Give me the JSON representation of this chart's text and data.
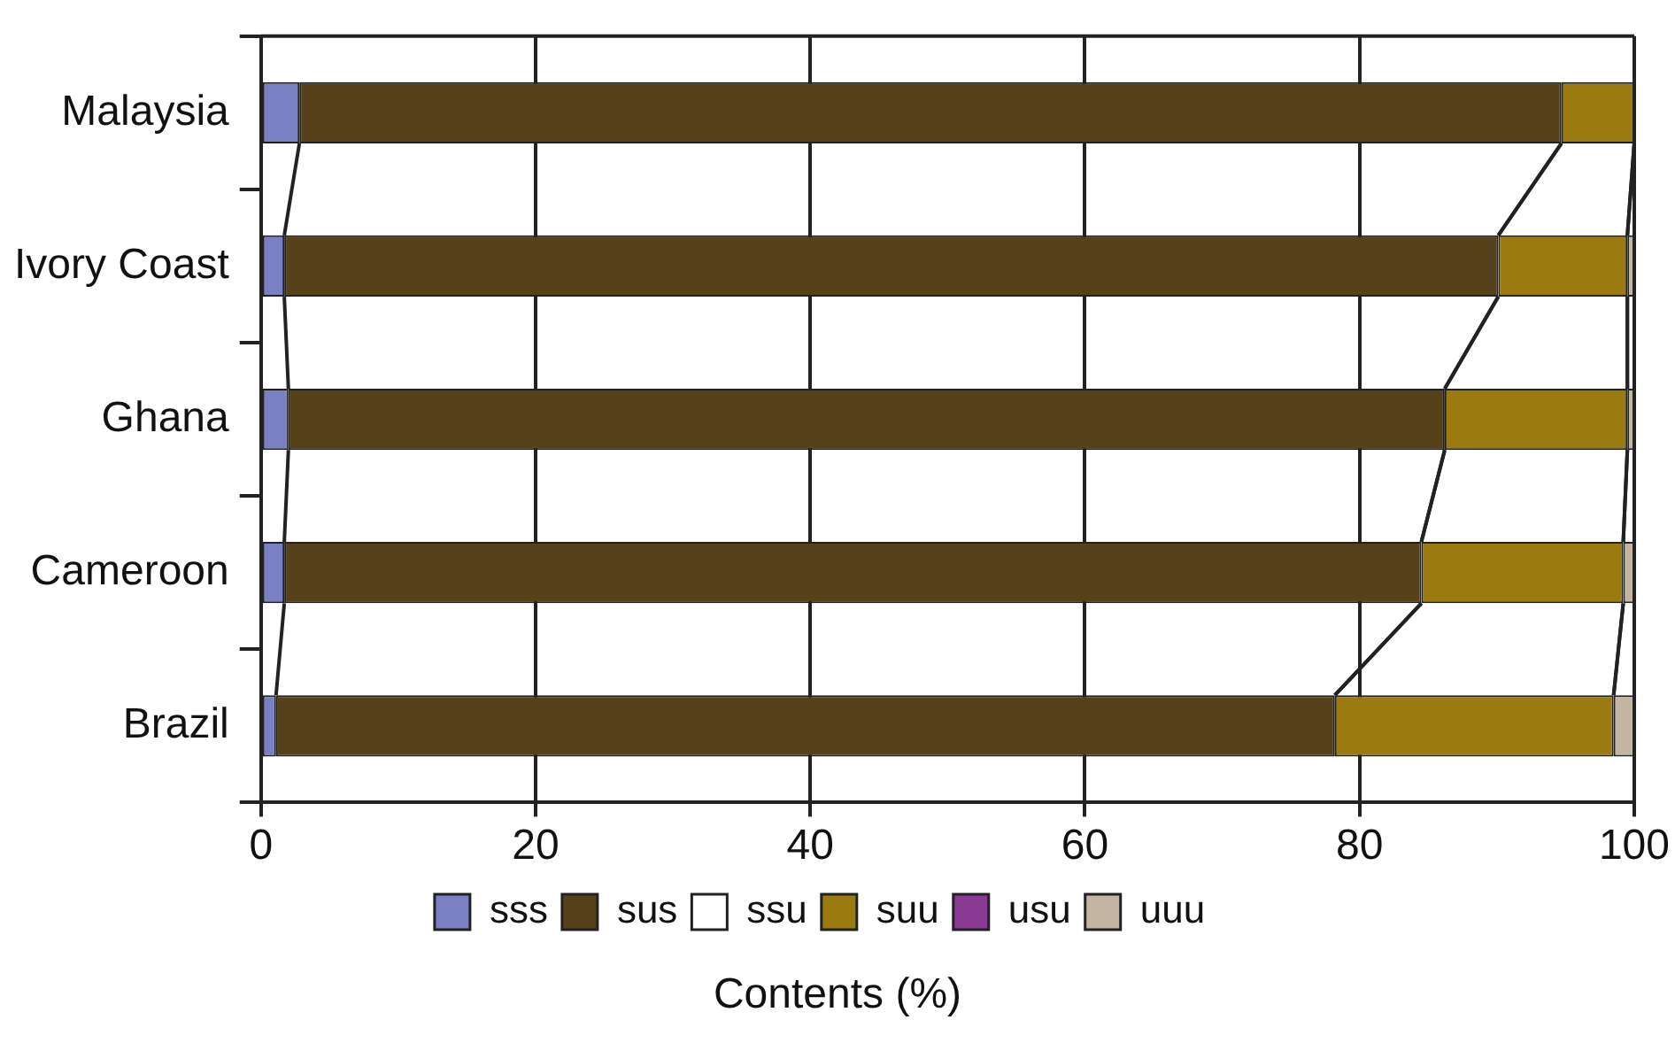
{
  "chart_data": {
    "type": "bar",
    "orientation": "horizontal",
    "stacked": true,
    "xlabel": "Contents (%)",
    "categories": [
      "Malaysia",
      "Ivory Coast",
      "Ghana",
      "Cameroon",
      "Brazil"
    ],
    "series": [
      {
        "name": "sss",
        "color": "#7b7fc4",
        "values": [
          2.8,
          1.7,
          2.0,
          1.7,
          1.1
        ]
      },
      {
        "name": "sus",
        "color": "#56411a",
        "values": [
          91.9,
          88.4,
          84.2,
          82.8,
          77.1
        ]
      },
      {
        "name": "ssu",
        "color": "#ffffff",
        "values": [
          0,
          0,
          0,
          0,
          0
        ]
      },
      {
        "name": "suu",
        "color": "#9b7b10",
        "values": [
          5.3,
          9.4,
          13.3,
          14.7,
          20.3
        ]
      },
      {
        "name": "usu",
        "color": "#8b3a96",
        "values": [
          0,
          0,
          0,
          0,
          0
        ]
      },
      {
        "name": "uuu",
        "color": "#c4b5a3",
        "values": [
          0,
          0.5,
          0.5,
          0.8,
          1.5
        ]
      }
    ],
    "xlim": [
      0,
      100
    ],
    "xticks": [
      0,
      20,
      40,
      60,
      80,
      100
    ],
    "grid": "x",
    "legend": "bottom"
  }
}
